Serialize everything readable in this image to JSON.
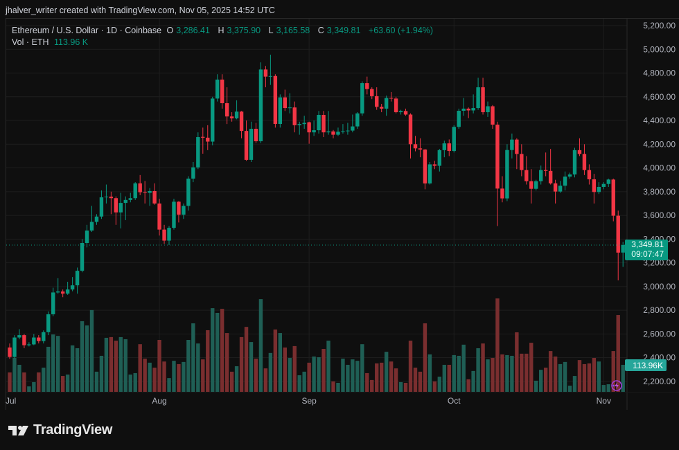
{
  "credit": "jhalver_writer created with TradingView.com, Nov 05, 2025 14:52 UTC",
  "legend": {
    "symbol": "Ethereum / U.S. Dollar · 1D · Coinbase",
    "o_label": "O",
    "o": "3,286.41",
    "h_label": "H",
    "h": "3,375.90",
    "l_label": "L",
    "l": "3,165.58",
    "c_label": "C",
    "c": "3,349.81",
    "change": "+63.60 (+1.94%)",
    "vol_label": "Vol · ETH",
    "vol": "113.96 K"
  },
  "price_tag": {
    "price": "3,349.81",
    "countdown": "09:07:47"
  },
  "volume_tag": "113.96K",
  "logo": "TradingView",
  "colors": {
    "up": "#089981",
    "down": "#F23645",
    "up_volume": "#1f5f55",
    "down_volume": "#7a2e2f",
    "background": "#0f0f0f",
    "grid": "#1e1e1e"
  },
  "chart_data": {
    "type": "candlestick",
    "y_axis": {
      "min": 2200,
      "max": 5200,
      "step": 200,
      "ticks": [
        "5,200.00",
        "5,000.00",
        "4,800.00",
        "4,600.00",
        "4,400.00",
        "4,200.00",
        "4,000.00",
        "3,800.00",
        "3,600.00",
        "3,400.00",
        "3,200.00",
        "3,000.00",
        "2,800.00",
        "2,600.00",
        "2,400.00",
        "2,200.00"
      ]
    },
    "x_ticks": [
      {
        "label": "Jul",
        "date": "2025-07-01"
      },
      {
        "label": "Aug",
        "date": "2025-08-01"
      },
      {
        "label": "Sep",
        "date": "2025-09-01"
      },
      {
        "label": "Oct",
        "date": "2025-10-01"
      },
      {
        "label": "Nov",
        "date": "2025-11-01"
      }
    ],
    "grid": true,
    "last_price": 3349.81,
    "columns": [
      "date",
      "open",
      "high",
      "low",
      "close",
      "volume_k"
    ],
    "rows": [
      [
        "2025-07-01",
        2486,
        2520,
        2390,
        2406,
        82
      ],
      [
        "2025-07-02",
        2406,
        2590,
        2395,
        2570,
        143
      ],
      [
        "2025-07-03",
        2570,
        2640,
        2555,
        2590,
        114
      ],
      [
        "2025-07-04",
        2590,
        2600,
        2480,
        2505,
        82
      ],
      [
        "2025-07-05",
        2505,
        2530,
        2495,
        2512,
        23
      ],
      [
        "2025-07-06",
        2512,
        2600,
        2505,
        2570,
        41
      ],
      [
        "2025-07-07",
        2570,
        2590,
        2520,
        2540,
        82
      ],
      [
        "2025-07-08",
        2540,
        2630,
        2520,
        2615,
        102
      ],
      [
        "2025-07-09",
        2615,
        2790,
        2590,
        2766,
        190
      ],
      [
        "2025-07-10",
        2766,
        2990,
        2750,
        2950,
        242
      ],
      [
        "2025-07-11",
        2950,
        3070,
        2940,
        2958,
        236
      ],
      [
        "2025-07-12",
        2958,
        2975,
        2910,
        2940,
        67
      ],
      [
        "2025-07-13",
        2940,
        3040,
        2930,
        2975,
        73
      ],
      [
        "2025-07-14",
        2975,
        3080,
        2960,
        3010,
        196
      ],
      [
        "2025-07-15",
        3010,
        3160,
        2940,
        3133,
        184
      ],
      [
        "2025-07-16",
        3133,
        3400,
        3120,
        3367,
        298
      ],
      [
        "2025-07-17",
        3367,
        3520,
        3330,
        3472,
        280
      ],
      [
        "2025-07-18",
        3472,
        3680,
        3460,
        3545,
        345
      ],
      [
        "2025-07-19",
        3545,
        3610,
        3520,
        3590,
        85
      ],
      [
        "2025-07-20",
        3590,
        3810,
        3570,
        3752,
        152
      ],
      [
        "2025-07-21",
        3752,
        3860,
        3700,
        3758,
        228
      ],
      [
        "2025-07-22",
        3758,
        3800,
        3610,
        3745,
        231
      ],
      [
        "2025-07-23",
        3745,
        3760,
        3520,
        3625,
        216
      ],
      [
        "2025-07-24",
        3625,
        3790,
        3490,
        3705,
        231
      ],
      [
        "2025-07-25",
        3705,
        3760,
        3560,
        3730,
        222
      ],
      [
        "2025-07-26",
        3730,
        3790,
        3710,
        3745,
        73
      ],
      [
        "2025-07-27",
        3745,
        3880,
        3730,
        3870,
        79
      ],
      [
        "2025-07-28",
        3870,
        3940,
        3770,
        3795,
        201
      ],
      [
        "2025-07-29",
        3795,
        3890,
        3700,
        3790,
        140
      ],
      [
        "2025-07-30",
        3790,
        3830,
        3680,
        3805,
        123
      ],
      [
        "2025-07-31",
        3805,
        3870,
        3690,
        3700,
        102
      ],
      [
        "2025-08-01",
        3700,
        3740,
        3430,
        3480,
        219
      ],
      [
        "2025-08-02",
        3480,
        3520,
        3360,
        3387,
        128
      ],
      [
        "2025-08-03",
        3387,
        3510,
        3350,
        3495,
        58
      ],
      [
        "2025-08-04",
        3495,
        3740,
        3480,
        3715,
        131
      ],
      [
        "2025-08-05",
        3715,
        3720,
        3540,
        3606,
        117
      ],
      [
        "2025-08-06",
        3606,
        3700,
        3570,
        3680,
        126
      ],
      [
        "2025-08-07",
        3680,
        3930,
        3640,
        3910,
        219
      ],
      [
        "2025-08-08",
        3910,
        4050,
        3880,
        4005,
        289
      ],
      [
        "2025-08-09",
        4005,
        4300,
        3990,
        4260,
        204
      ],
      [
        "2025-08-10",
        4262,
        4340,
        4120,
        4255,
        137
      ],
      [
        "2025-08-11",
        4255,
        4360,
        4150,
        4222,
        260
      ],
      [
        "2025-08-12",
        4222,
        4600,
        4190,
        4585,
        353
      ],
      [
        "2025-08-13",
        4585,
        4790,
        4560,
        4745,
        333
      ],
      [
        "2025-08-14",
        4745,
        4790,
        4500,
        4546,
        350
      ],
      [
        "2025-08-15",
        4546,
        4680,
        4370,
        4434,
        248
      ],
      [
        "2025-08-16",
        4434,
        4470,
        4390,
        4418,
        85
      ],
      [
        "2025-08-17",
        4418,
        4570,
        4410,
        4475,
        108
      ],
      [
        "2025-08-18",
        4475,
        4480,
        4250,
        4312,
        231
      ],
      [
        "2025-08-19",
        4312,
        4400,
        4060,
        4068,
        274
      ],
      [
        "2025-08-20",
        4068,
        4390,
        4050,
        4330,
        210
      ],
      [
        "2025-08-21",
        4330,
        4380,
        4210,
        4225,
        140
      ],
      [
        "2025-08-22",
        4225,
        4890,
        4210,
        4830,
        391
      ],
      [
        "2025-08-23",
        4830,
        4860,
        4680,
        4770,
        99
      ],
      [
        "2025-08-24",
        4770,
        4955,
        4700,
        4775,
        164
      ],
      [
        "2025-08-25",
        4775,
        4790,
        4340,
        4371,
        263
      ],
      [
        "2025-08-26",
        4371,
        4620,
        4340,
        4595,
        248
      ],
      [
        "2025-08-27",
        4595,
        4660,
        4480,
        4505,
        187
      ],
      [
        "2025-08-28",
        4505,
        4630,
        4460,
        4510,
        143
      ],
      [
        "2025-08-29",
        4510,
        4560,
        4300,
        4360,
        193
      ],
      [
        "2025-08-30",
        4360,
        4390,
        4280,
        4370,
        70
      ],
      [
        "2025-08-31",
        4370,
        4440,
        4330,
        4380,
        85
      ],
      [
        "2025-09-01",
        4385,
        4390,
        4204,
        4300,
        123
      ],
      [
        "2025-09-02",
        4300,
        4400,
        4270,
        4318,
        149
      ],
      [
        "2025-09-03",
        4318,
        4480,
        4290,
        4447,
        146
      ],
      [
        "2025-09-04",
        4447,
        4480,
        4260,
        4300,
        181
      ],
      [
        "2025-09-05",
        4300,
        4480,
        4280,
        4308,
        216
      ],
      [
        "2025-09-06",
        4308,
        4320,
        4250,
        4280,
        44
      ],
      [
        "2025-09-07",
        4280,
        4340,
        4270,
        4305,
        38
      ],
      [
        "2025-09-08",
        4305,
        4370,
        4290,
        4310,
        140
      ],
      [
        "2025-09-09",
        4310,
        4380,
        4280,
        4315,
        114
      ],
      [
        "2025-09-10",
        4315,
        4450,
        4300,
        4350,
        137
      ],
      [
        "2025-09-11",
        4350,
        4470,
        4330,
        4460,
        131
      ],
      [
        "2025-09-12",
        4460,
        4730,
        4440,
        4715,
        201
      ],
      [
        "2025-09-13",
        4715,
        4770,
        4620,
        4665,
        79
      ],
      [
        "2025-09-14",
        4665,
        4680,
        4580,
        4605,
        50
      ],
      [
        "2025-09-15",
        4605,
        4680,
        4490,
        4515,
        120
      ],
      [
        "2025-09-16",
        4515,
        4540,
        4470,
        4500,
        123
      ],
      [
        "2025-09-17",
        4500,
        4610,
        4440,
        4590,
        169
      ],
      [
        "2025-09-18",
        4590,
        4640,
        4560,
        4585,
        128
      ],
      [
        "2025-09-19",
        4585,
        4600,
        4460,
        4470,
        99
      ],
      [
        "2025-09-20",
        4470,
        4490,
        4450,
        4480,
        41
      ],
      [
        "2025-09-21",
        4480,
        4500,
        4440,
        4450,
        38
      ],
      [
        "2025-09-22",
        4450,
        4460,
        4080,
        4200,
        216
      ],
      [
        "2025-09-23",
        4200,
        4270,
        4140,
        4165,
        102
      ],
      [
        "2025-09-24",
        4165,
        4250,
        4090,
        4155,
        85
      ],
      [
        "2025-09-25",
        4155,
        4160,
        3820,
        3869,
        289
      ],
      [
        "2025-09-26",
        3869,
        4050,
        3860,
        4030,
        158
      ],
      [
        "2025-09-27",
        4030,
        4060,
        3990,
        4018,
        44
      ],
      [
        "2025-09-28",
        4018,
        4160,
        3970,
        4150,
        64
      ],
      [
        "2025-09-29",
        4150,
        4230,
        4090,
        4207,
        114
      ],
      [
        "2025-09-30",
        4207,
        4240,
        4100,
        4143,
        114
      ],
      [
        "2025-10-01",
        4143,
        4360,
        4130,
        4346,
        155
      ],
      [
        "2025-10-02",
        4346,
        4500,
        4330,
        4482,
        152
      ],
      [
        "2025-10-03",
        4482,
        4590,
        4440,
        4500,
        199
      ],
      [
        "2025-10-04",
        4500,
        4510,
        4420,
        4485,
        53
      ],
      [
        "2025-10-05",
        4485,
        4620,
        4460,
        4505,
        88
      ],
      [
        "2025-10-06",
        4505,
        4760,
        4490,
        4680,
        184
      ],
      [
        "2025-10-07",
        4680,
        4760,
        4450,
        4470,
        204
      ],
      [
        "2025-10-08",
        4470,
        4560,
        4430,
        4520,
        137
      ],
      [
        "2025-10-09",
        4520,
        4530,
        4330,
        4365,
        143
      ],
      [
        "2025-10-10",
        4365,
        4390,
        3510,
        3826,
        394
      ],
      [
        "2025-10-11",
        3826,
        3930,
        3710,
        3743,
        158
      ],
      [
        "2025-10-12",
        3743,
        4200,
        3720,
        4151,
        155
      ],
      [
        "2025-10-13",
        4151,
        4290,
        4080,
        4239,
        152
      ],
      [
        "2025-10-14",
        4239,
        4250,
        3990,
        4118,
        251
      ],
      [
        "2025-10-15",
        4118,
        4200,
        3930,
        3982,
        161
      ],
      [
        "2025-10-16",
        3982,
        4100,
        3860,
        3888,
        161
      ],
      [
        "2025-10-17",
        3888,
        3990,
        3700,
        3824,
        207
      ],
      [
        "2025-10-18",
        3824,
        3900,
        3810,
        3888,
        47
      ],
      [
        "2025-10-19",
        3888,
        4020,
        3860,
        3982,
        93
      ],
      [
        "2025-10-20",
        3982,
        4130,
        3930,
        3975,
        102
      ],
      [
        "2025-10-21",
        3975,
        4160,
        3860,
        3870,
        172
      ],
      [
        "2025-10-22",
        3870,
        3900,
        3700,
        3801,
        149
      ],
      [
        "2025-10-23",
        3801,
        3890,
        3790,
        3850,
        117
      ],
      [
        "2025-10-24",
        3850,
        3970,
        3810,
        3927,
        126
      ],
      [
        "2025-10-25",
        3927,
        3960,
        3910,
        3945,
        26
      ],
      [
        "2025-10-26",
        3945,
        4170,
        3920,
        4150,
        67
      ],
      [
        "2025-10-27",
        4150,
        4250,
        4100,
        4118,
        134
      ],
      [
        "2025-10-28",
        4118,
        4200,
        3940,
        3982,
        117
      ],
      [
        "2025-10-29",
        3982,
        4030,
        3860,
        3904,
        120
      ],
      [
        "2025-10-30",
        3904,
        3950,
        3700,
        3797,
        143
      ],
      [
        "2025-10-31",
        3797,
        3880,
        3780,
        3840,
        128
      ],
      [
        "2025-11-01",
        3840,
        3880,
        3820,
        3865,
        29
      ],
      [
        "2025-11-02",
        3865,
        3910,
        3840,
        3902,
        32
      ],
      [
        "2025-11-03",
        3902,
        3910,
        3550,
        3597,
        172
      ],
      [
        "2025-11-04",
        3597,
        3640,
        3052,
        3286,
        324
      ],
      [
        "2025-11-05",
        3286.41,
        3375.9,
        3165.58,
        3349.81,
        113.96
      ]
    ]
  }
}
